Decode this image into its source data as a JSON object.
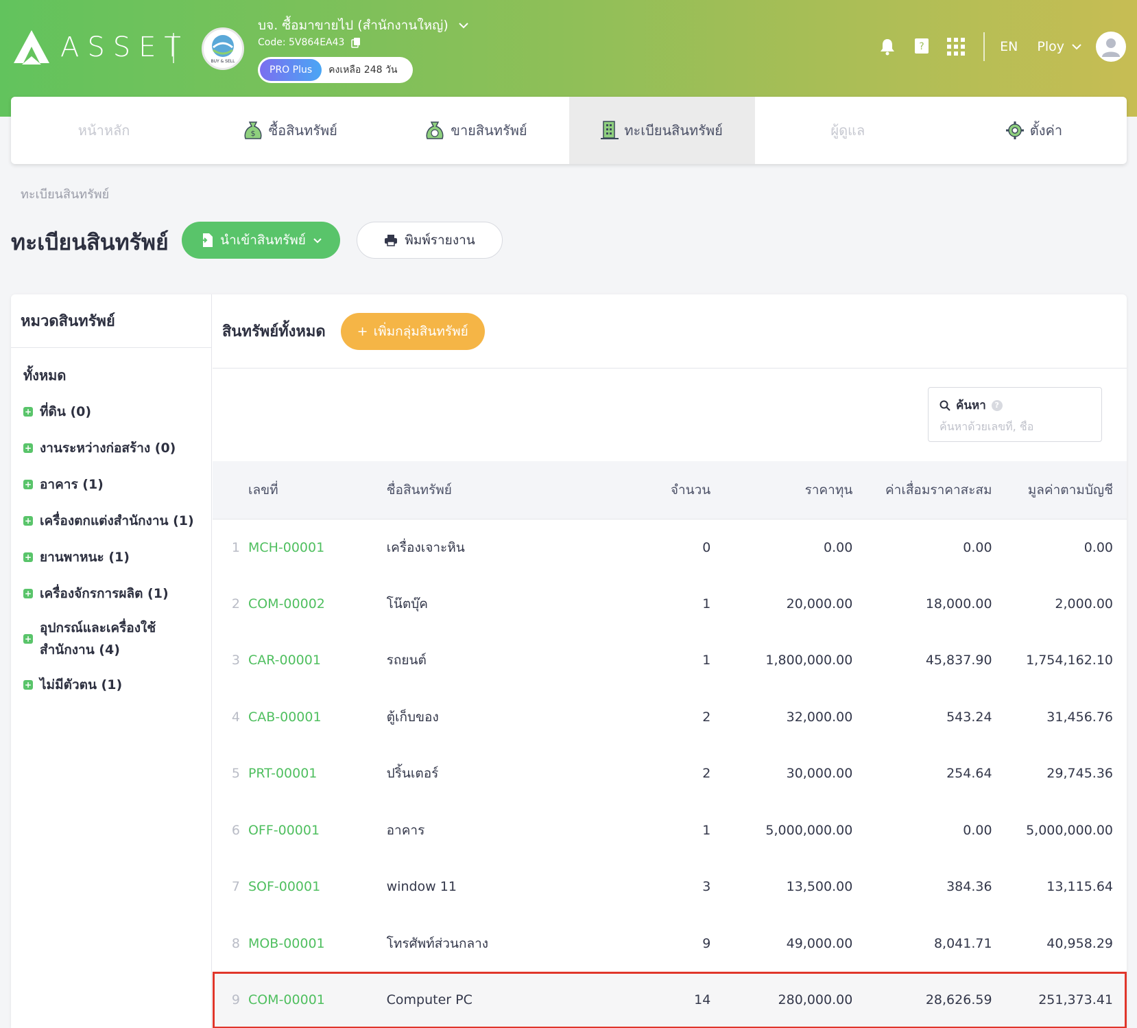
{
  "header": {
    "logo_text": "ASSET",
    "company_name": "บจ. ซื้อมาขายไป (สำนักงานใหญ่)",
    "company_code": "Code: 5V864EA43",
    "company_logo_text": "BUY & SELL",
    "plan_badge": "PRO Plus",
    "plan_remaining": "คงเหลือ 248 วัน",
    "language": "EN",
    "user_name": "Ploy"
  },
  "nav": {
    "tabs": [
      {
        "label": "หน้าหลัก",
        "icon": "home"
      },
      {
        "label": "ซื้อสินทรัพย์",
        "icon": "money-bag-icon"
      },
      {
        "label": "ขายสินทรัพย์",
        "icon": "money-bag-sell-icon"
      },
      {
        "label": "ทะเบียนสินทรัพย์",
        "icon": "building-icon"
      },
      {
        "label": "ผู้ดูแล",
        "icon": ""
      },
      {
        "label": "ตั้งค่า",
        "icon": "gear-icon"
      }
    ]
  },
  "breadcrumb": "ทะเบียนสินทรัพย์",
  "page": {
    "title": "ทะเบียนสินทรัพย์",
    "import_button": "นำเข้าสินทรัพย์",
    "print_button": "พิมพ์รายงาน"
  },
  "sidebar": {
    "title": "หมวดสินทรัพย์",
    "all_label": "ทั้งหมด",
    "categories": [
      {
        "label": "ที่ดิน (0)"
      },
      {
        "label": "งานระหว่างก่อสร้าง (0)"
      },
      {
        "label": "อาคาร (1)"
      },
      {
        "label": "เครื่องตกแต่งสำนักงาน (1)"
      },
      {
        "label": "ยานพาหนะ (1)"
      },
      {
        "label": "เครื่องจักรการผลิต (1)"
      },
      {
        "label_line1": "อุปกรณ์และเครื่องใช้",
        "label_line2": "สำนักงาน (4)"
      },
      {
        "label": "ไม่มีตัวตน (1)"
      }
    ]
  },
  "main": {
    "title": "สินทรัพย์ทั้งหมด",
    "add_group_button": "เพิ่มกลุ่มสินทรัพย์",
    "search_label": "ค้นหา",
    "search_placeholder": "ค้นหาด้วยเลขที่, ชื่อ"
  },
  "table": {
    "headers": [
      "เลขที่",
      "ชื่อสินทรัพย์",
      "จำนวน",
      "ราคาทุน",
      "ค่าเสื่อมราคาสะสม",
      "มูลค่าตามบัญชี"
    ],
    "rows": [
      {
        "idx": "1",
        "code": "MCH-00001",
        "name": "เครื่องเจาะหิน",
        "qty": "0",
        "cost": "0.00",
        "dep": "0.00",
        "book": "0.00"
      },
      {
        "idx": "2",
        "code": "COM-00002",
        "name": "โน๊ตบุ๊ค",
        "qty": "1",
        "cost": "20,000.00",
        "dep": "18,000.00",
        "book": "2,000.00"
      },
      {
        "idx": "3",
        "code": "CAR-00001",
        "name": "รถยนต์",
        "qty": "1",
        "cost": "1,800,000.00",
        "dep": "45,837.90",
        "book": "1,754,162.10"
      },
      {
        "idx": "4",
        "code": "CAB-00001",
        "name": "ตู้เก็บของ",
        "qty": "2",
        "cost": "32,000.00",
        "dep": "543.24",
        "book": "31,456.76"
      },
      {
        "idx": "5",
        "code": "PRT-00001",
        "name": "ปริ้นเตอร์",
        "qty": "2",
        "cost": "30,000.00",
        "dep": "254.64",
        "book": "29,745.36"
      },
      {
        "idx": "6",
        "code": "OFF-00001",
        "name": "อาคาร",
        "qty": "1",
        "cost": "5,000,000.00",
        "dep": "0.00",
        "book": "5,000,000.00"
      },
      {
        "idx": "7",
        "code": "SOF-00001",
        "name": "window 11",
        "qty": "3",
        "cost": "13,500.00",
        "dep": "384.36",
        "book": "13,115.64"
      },
      {
        "idx": "8",
        "code": "MOB-00001",
        "name": "โทรศัพท์ส่วนกลาง",
        "qty": "9",
        "cost": "49,000.00",
        "dep": "8,041.71",
        "book": "40,958.29"
      },
      {
        "idx": "9",
        "code": "COM-00001",
        "name": "Computer PC",
        "qty": "14",
        "cost": "280,000.00",
        "dep": "28,626.59",
        "book": "251,373.41"
      }
    ]
  },
  "colors": {
    "brand_green": "#59c46a",
    "link_green": "#4fbf5f",
    "add_orange": "#f5b546",
    "highlight_red": "#e0362b"
  }
}
